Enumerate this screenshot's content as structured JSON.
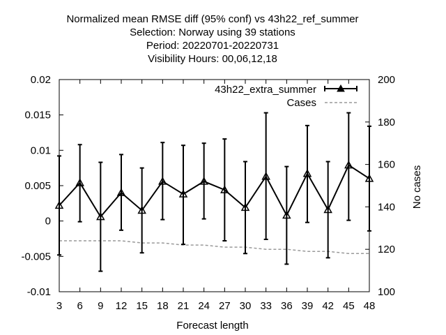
{
  "chart_data": {
    "type": "line",
    "title_lines": [
      "Normalized mean RMSE diff (95% conf) vs 43h22_ref_summer",
      "Selection: Norway using    39 stations",
      "Period: 20220701-20220731",
      "Visibility   Hours:  00,06,12,18"
    ],
    "xlabel": "Forecast length",
    "ylabel": "",
    "y2label": "No cases",
    "xlim": [
      3,
      48
    ],
    "ylim": [
      -0.01,
      0.02
    ],
    "y2lim": [
      100,
      200
    ],
    "x_ticks": [
      "3",
      "6",
      "9",
      "12",
      "15",
      "18",
      "21",
      "24",
      "27",
      "30",
      "33",
      "36",
      "39",
      "42",
      "45",
      "48"
    ],
    "y_ticks": [
      "0.02",
      "0.015",
      "0.01",
      "0.005",
      "0",
      "-0.005",
      "-0.01"
    ],
    "y_tick_values": [
      0.02,
      0.015,
      0.01,
      0.005,
      0,
      -0.005,
      -0.01
    ],
    "y2_ticks": [
      "200",
      "180",
      "160",
      "140",
      "120",
      "100"
    ],
    "y2_tick_values": [
      200,
      180,
      160,
      140,
      120,
      100
    ],
    "legend_position": "top-right",
    "series": [
      {
        "name": "43h22_extra_summer",
        "axis": "y",
        "color": "#000000",
        "x": [
          3,
          6,
          9,
          12,
          15,
          18,
          21,
          24,
          27,
          30,
          33,
          36,
          39,
          42,
          45,
          48
        ],
        "values": [
          0.0022,
          0.0054,
          0.0006,
          0.004,
          0.0015,
          0.0056,
          0.0038,
          0.0056,
          0.0044,
          0.0019,
          0.0063,
          0.0008,
          0.0067,
          0.0016,
          0.0079,
          0.006
        ],
        "err_low": [
          -0.0048,
          -0.0001,
          -0.0071,
          -0.0013,
          -0.0045,
          0.0002,
          -0.0033,
          0.0003,
          -0.0028,
          -0.0046,
          -0.0026,
          -0.0061,
          -0.0002,
          -0.0052,
          0.0001,
          -0.0014
        ],
        "err_high": [
          0.0092,
          0.0108,
          0.0083,
          0.0094,
          0.0075,
          0.0111,
          0.0107,
          0.011,
          0.0116,
          0.0084,
          0.0153,
          0.0077,
          0.0135,
          0.0084,
          0.0153,
          0.0134
        ]
      },
      {
        "name": "Cases",
        "axis": "y2",
        "color": "#999999",
        "x": [
          3,
          6,
          9,
          12,
          15,
          18,
          21,
          24,
          27,
          30,
          33,
          36,
          39,
          42,
          45,
          48
        ],
        "values": [
          124,
          124,
          124,
          124,
          123,
          123,
          122,
          122,
          121,
          121,
          120,
          120,
          119,
          119,
          118,
          118
        ]
      }
    ]
  }
}
